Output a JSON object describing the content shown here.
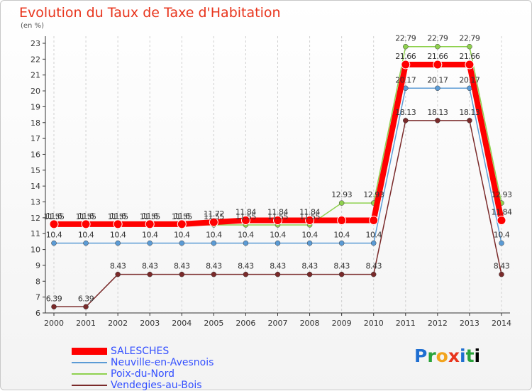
{
  "chart_data": {
    "type": "line",
    "title": "Evolution du Taux de Taxe d'Habitation",
    "unit_label": "(en %)",
    "xlabel": "",
    "ylabel": "",
    "categories": [
      "2000",
      "2001",
      "2002",
      "2003",
      "2004",
      "2005",
      "2006",
      "2007",
      "2008",
      "2009",
      "2010",
      "2011",
      "2012",
      "2013",
      "2014"
    ],
    "ylim": [
      6,
      23
    ],
    "yticks": [
      "6",
      "7",
      "8",
      "9",
      "10",
      "11",
      "12",
      "13",
      "14",
      "15",
      "16",
      "17",
      "18",
      "19",
      "20",
      "21",
      "22",
      "23"
    ],
    "grid": "vertical dashed",
    "legend_position": "bottom-left",
    "series": [
      {
        "name": "SALESCHES",
        "color": "#ff0000",
        "values": [
          11.6,
          11.6,
          11.6,
          11.6,
          11.6,
          11.72,
          11.84,
          11.84,
          11.84,
          11.84,
          11.84,
          21.66,
          21.66,
          21.66,
          11.84
        ],
        "labels": [
          "11.6",
          "11.6",
          "11.6",
          "11.6",
          "11.6",
          "11.72",
          "11.84",
          "11.84",
          "11.84",
          "",
          "",
          "21.66",
          "21.66",
          "21.66",
          "11.84"
        ]
      },
      {
        "name": "Neuville-en-Avesnois",
        "color": "#5b9bd5",
        "values": [
          10.4,
          10.4,
          10.4,
          10.4,
          10.4,
          10.4,
          10.4,
          10.4,
          10.4,
          10.4,
          10.4,
          20.17,
          20.17,
          20.17,
          10.4
        ],
        "labels": [
          "10.4",
          "10.4",
          "10.4",
          "10.4",
          "10.4",
          "10.4",
          "10.4",
          "10.4",
          "10.4",
          "10.4",
          "10.4",
          "20.17",
          "20.17",
          "20.17",
          "10.4"
        ]
      },
      {
        "name": "Poix-du-Nord",
        "color": "#8fd14f",
        "values": [
          11.55,
          11.55,
          11.55,
          11.55,
          11.55,
          11.55,
          11.55,
          11.55,
          11.55,
          12.93,
          12.93,
          22.79,
          22.79,
          22.79,
          12.93
        ],
        "labels": [
          "11.55",
          "11.55",
          "11.55",
          "11.55",
          "11.55",
          "11.55",
          "11.55",
          "11.55",
          "11.55",
          "12.93",
          "12.93",
          "22.79",
          "22.79",
          "22.79",
          "12.93"
        ]
      },
      {
        "name": "Vendegies-au-Bois",
        "color": "#7a2a2a",
        "values": [
          6.39,
          6.39,
          8.43,
          8.43,
          8.43,
          8.43,
          8.43,
          8.43,
          8.43,
          8.43,
          8.43,
          18.13,
          18.13,
          18.13,
          8.43
        ],
        "labels": [
          "6.39",
          "6.39",
          "8.43",
          "8.43",
          "8.43",
          "8.43",
          "8.43",
          "8.43",
          "8.43",
          "8.43",
          "8.43",
          "18.13",
          "18.13",
          "18.13",
          "8.43"
        ]
      }
    ]
  },
  "logo": {
    "letters": [
      "P",
      "r",
      "o",
      "x",
      "i",
      "t"
    ]
  }
}
